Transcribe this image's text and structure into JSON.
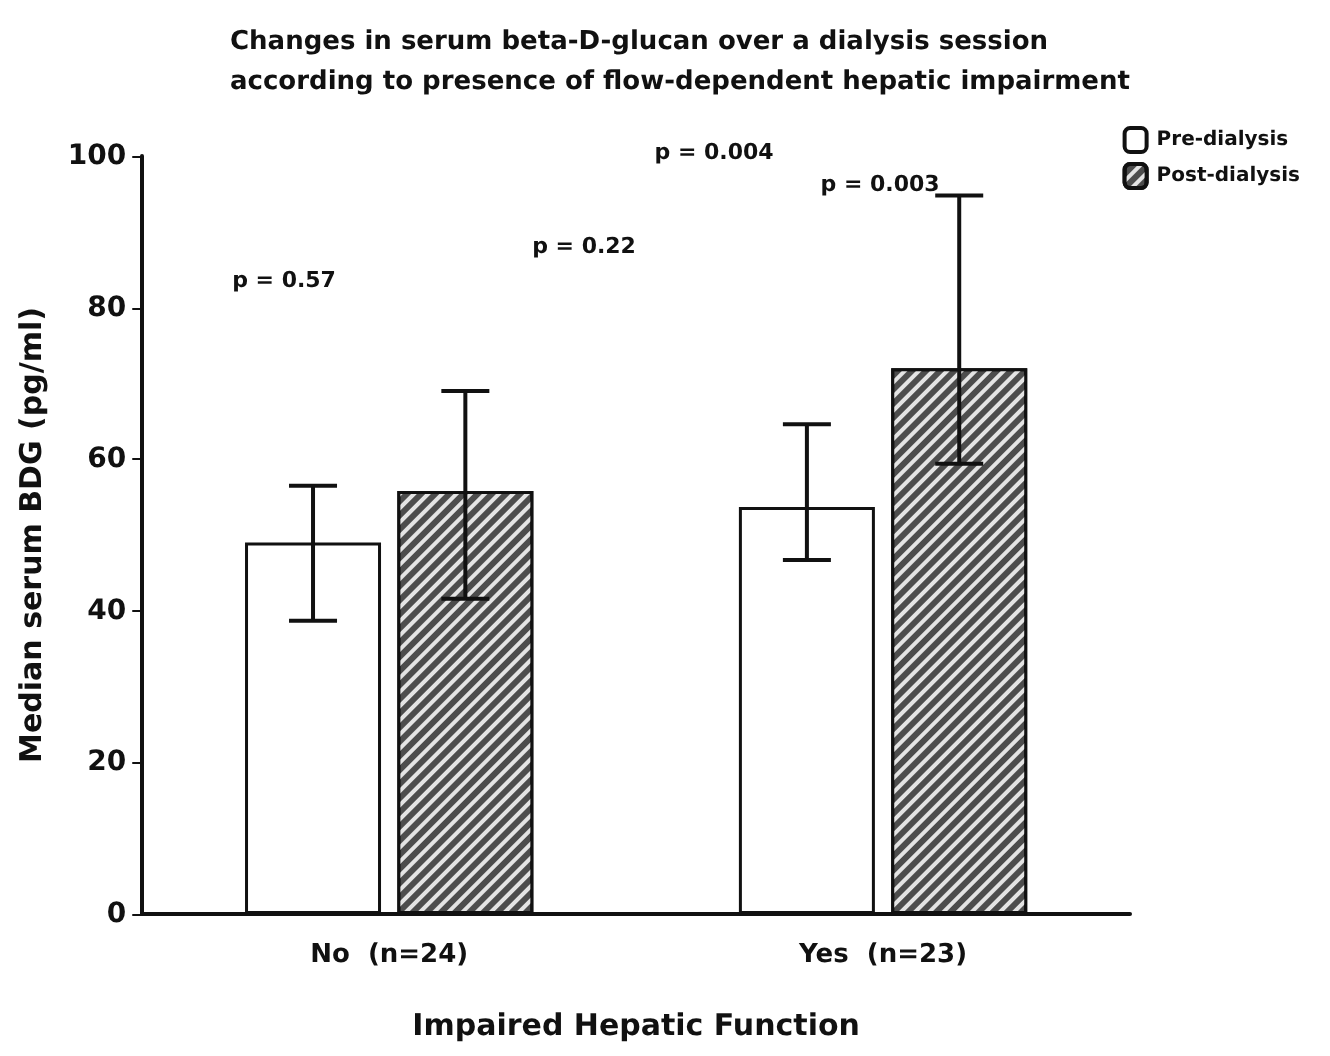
{
  "chart_data": {
    "type": "bar",
    "title": "Changes in serum beta-D-glucan over a dialysis session\naccording to presence of flow-dependent hepatic impairment",
    "xlabel": "Impaired Hepatic Function",
    "ylabel": "Median serum BDG (pg/ml)",
    "categories": [
      "No  (n=24)",
      "Yes  (n=23)"
    ],
    "series": [
      {
        "name": "Pre-dialysis",
        "color": "#ffffff",
        "values": [
          49,
          53.7
        ],
        "errors": [
          [
            38.7,
            56.5
          ],
          [
            46.7,
            64.6
          ]
        ]
      },
      {
        "name": "Post-dialysis",
        "color": "#4d4d4d",
        "values": [
          55.8,
          72
        ],
        "errors": [
          [
            41.6,
            69
          ],
          [
            59.4,
            94.8
          ]
        ]
      }
    ],
    "ylim": [
      0,
      100
    ],
    "yticks": [
      0,
      20,
      40,
      60,
      80,
      100
    ],
    "grid": false,
    "legend": "top right",
    "annotations": [
      "p = 0.57",
      "p = 0.22",
      "p = 0.004",
      "p = 0.003"
    ]
  }
}
